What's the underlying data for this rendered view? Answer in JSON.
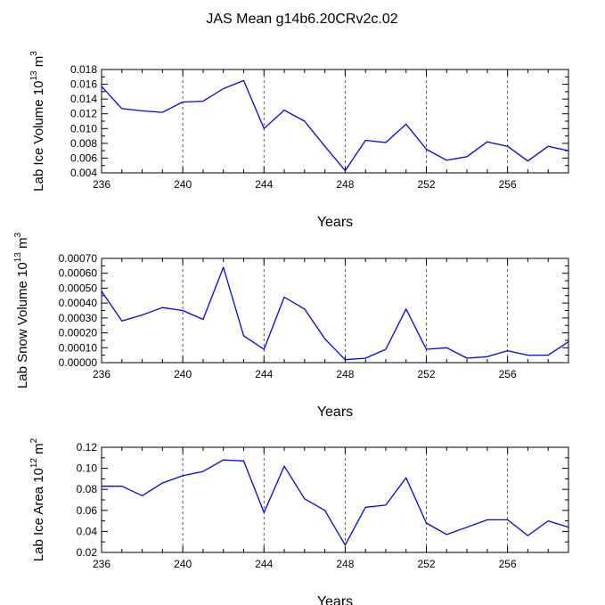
{
  "chart_data": {
    "title": "JAS Mean g14b6.20CRv2c.02",
    "panels": [
      {
        "type": "line",
        "name": "ice-volume",
        "ylabel_main": "Lab Ice Volume 10",
        "ylabel_exp": "13",
        "ylabel_unit": " m",
        "ylabel_unit_exp": "3",
        "xlabel": "Years",
        "xlim": [
          236,
          259
        ],
        "ylim": [
          0.004,
          0.018
        ],
        "x_ticks": [
          236,
          240,
          244,
          248,
          252,
          256
        ],
        "x_tick_labels": [
          "236",
          "240",
          "244",
          "248",
          "252",
          "256"
        ],
        "y_ticks": [
          0.004,
          0.006,
          0.008,
          0.01,
          0.012,
          0.014,
          0.016,
          0.018
        ],
        "y_tick_labels": [
          "0.004",
          "0.006",
          "0.008",
          "0.010",
          "0.012",
          "0.014",
          "0.016",
          "0.018"
        ],
        "dashed_x": [
          240,
          244,
          248,
          252,
          256
        ],
        "x": [
          236,
          237,
          238,
          239,
          240,
          241,
          242,
          243,
          244,
          245,
          246,
          247,
          248,
          249,
          250,
          251,
          252,
          253,
          254,
          255,
          256,
          257,
          258,
          259
        ],
        "values": [
          0.0157,
          0.0127,
          0.0124,
          0.0122,
          0.0136,
          0.0137,
          0.0154,
          0.0165,
          0.01,
          0.0125,
          0.011,
          0.0076,
          0.0043,
          0.0084,
          0.0081,
          0.0106,
          0.0072,
          0.0057,
          0.0062,
          0.0082,
          0.0076,
          0.0056,
          0.0076,
          0.007
        ]
      },
      {
        "type": "line",
        "name": "snow-volume",
        "ylabel_main": "Lab Snow Volume 10",
        "ylabel_exp": "13",
        "ylabel_unit": " m",
        "ylabel_unit_exp": "3",
        "xlabel": "Years",
        "xlim": [
          236,
          259
        ],
        "ylim": [
          0.0,
          0.0007
        ],
        "x_ticks": [
          236,
          240,
          244,
          248,
          252,
          256
        ],
        "x_tick_labels": [
          "236",
          "240",
          "244",
          "248",
          "252",
          "256"
        ],
        "y_ticks": [
          0.0,
          0.0001,
          0.0002,
          0.0003,
          0.0004,
          0.0005,
          0.0006,
          0.0007
        ],
        "y_tick_labels": [
          "0.00000",
          "0.00010",
          "0.00020",
          "0.00030",
          "0.00040",
          "0.00050",
          "0.00060",
          "0.00070"
        ],
        "dashed_x": [
          240,
          244,
          248,
          252,
          256
        ],
        "x": [
          236,
          237,
          238,
          239,
          240,
          241,
          242,
          243,
          244,
          245,
          246,
          247,
          248,
          249,
          250,
          251,
          252,
          253,
          254,
          255,
          256,
          257,
          258,
          259
        ],
        "values": [
          0.00048,
          0.00028,
          0.00032,
          0.00037,
          0.00035,
          0.00029,
          0.00064,
          0.00018,
          9e-05,
          0.00044,
          0.00036,
          0.00016,
          2e-05,
          3e-05,
          9e-05,
          0.00036,
          9e-05,
          0.0001,
          3e-05,
          4e-05,
          8e-05,
          5e-05,
          5e-05,
          0.00014
        ]
      },
      {
        "type": "line",
        "name": "ice-area",
        "ylabel_main": "Lab Ice Area 10",
        "ylabel_exp": "12",
        "ylabel_unit": " m",
        "ylabel_unit_exp": "2",
        "xlabel": "Years",
        "xlim": [
          236,
          259
        ],
        "ylim": [
          0.02,
          0.12
        ],
        "x_ticks": [
          236,
          240,
          244,
          248,
          252,
          256
        ],
        "x_tick_labels": [
          "236",
          "240",
          "244",
          "248",
          "252",
          "256"
        ],
        "y_ticks": [
          0.02,
          0.04,
          0.06,
          0.08,
          0.1,
          0.12
        ],
        "y_tick_labels": [
          "0.02",
          "0.04",
          "0.06",
          "0.08",
          "0.10",
          "0.12"
        ],
        "dashed_x": [
          240,
          244,
          248,
          252,
          256
        ],
        "x": [
          236,
          237,
          238,
          239,
          240,
          241,
          242,
          243,
          244,
          245,
          246,
          247,
          248,
          249,
          250,
          251,
          252,
          253,
          254,
          255,
          256,
          257,
          258,
          259
        ],
        "values": [
          0.083,
          0.083,
          0.074,
          0.086,
          0.093,
          0.097,
          0.108,
          0.107,
          0.058,
          0.102,
          0.071,
          0.06,
          0.027,
          0.063,
          0.065,
          0.091,
          0.048,
          0.037,
          0.044,
          0.051,
          0.051,
          0.036,
          0.05,
          0.044
        ]
      }
    ]
  },
  "colors": {
    "line": "#0000ff",
    "axis": "#000000",
    "grid": "#000000"
  }
}
